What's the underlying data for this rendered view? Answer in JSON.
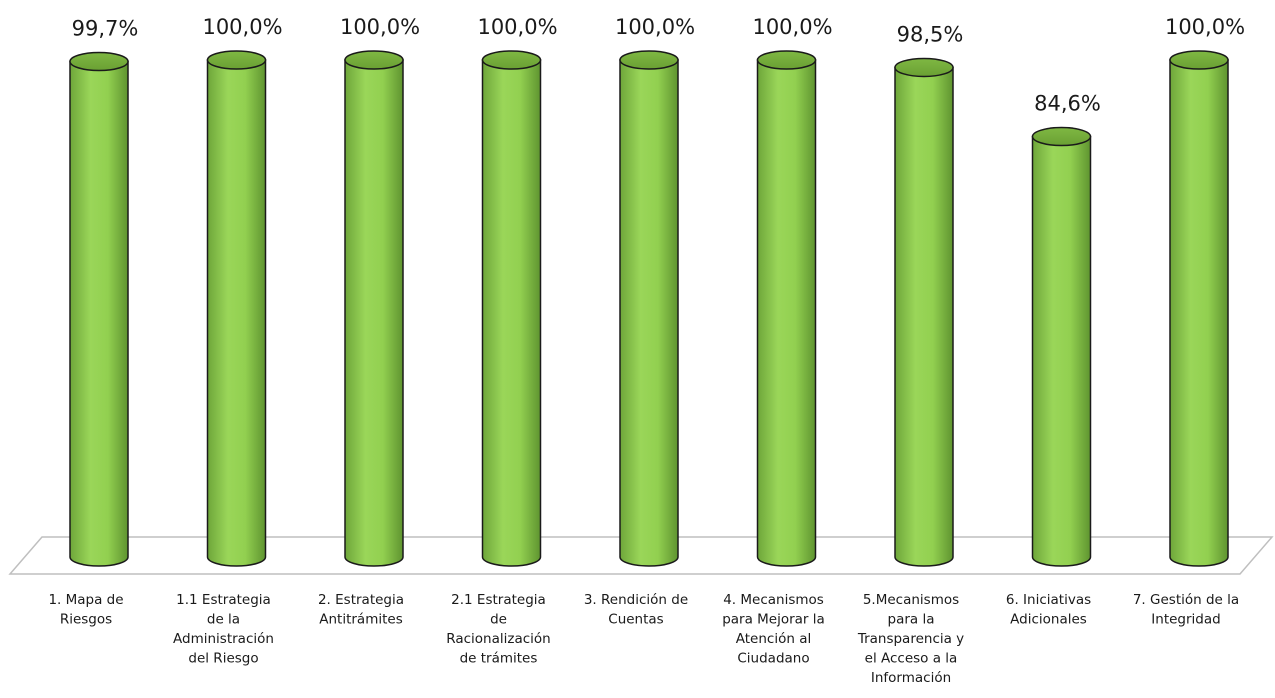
{
  "chart_data": {
    "type": "bar",
    "style": "3d-cylinder",
    "title": "",
    "xlabel": "",
    "ylabel": "",
    "ylim": [
      0,
      100
    ],
    "grid": false,
    "categories": [
      [
        "1. Mapa de",
        "Riesgos"
      ],
      [
        "1.1 Estrategia",
        "de la",
        "Administración",
        "del Riesgo"
      ],
      [
        "2. Estrategia",
        "Antitrámites"
      ],
      [
        "2.1 Estrategia",
        "de",
        "Racionalización",
        "de trámites"
      ],
      [
        "3. Rendición de",
        "Cuentas"
      ],
      [
        "4. Mecanismos",
        "para Mejorar la",
        "Atención al",
        "Ciudadano"
      ],
      [
        "5.Mecanismos",
        "para la",
        "Transparencia y",
        "el Acceso a la",
        "Información"
      ],
      [
        "6. Iniciativas",
        "Adicionales"
      ],
      [
        "7. Gestión de la",
        "Integridad"
      ]
    ],
    "values": [
      99.7,
      100.0,
      100.0,
      100.0,
      100.0,
      100.0,
      98.5,
      84.6,
      100.0
    ],
    "value_labels": [
      "99,7%",
      "100,0%",
      "100,0%",
      "100,0%",
      "100,0%",
      "100,0%",
      "98,5%",
      "84,6%",
      "100,0%"
    ],
    "bar_color": "#92d050",
    "bar_outline": "#1a1a1a"
  }
}
